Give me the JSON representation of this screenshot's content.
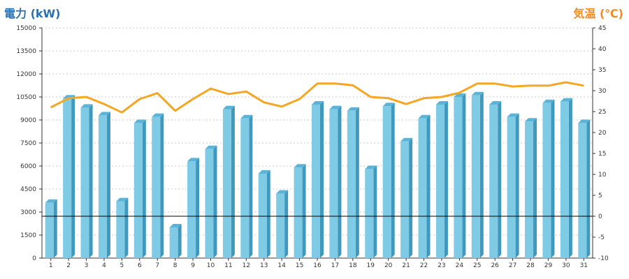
{
  "chart_data": {
    "type": "bar",
    "ylabel": "電力 (kW)",
    "y2label": "気温 (℃)",
    "categories": [
      "1",
      "2",
      "3",
      "4",
      "5",
      "6",
      "7",
      "8",
      "9",
      "10",
      "11",
      "12",
      "13",
      "14",
      "15",
      "16",
      "17",
      "18",
      "19",
      "20",
      "21",
      "22",
      "23",
      "24",
      "25",
      "26",
      "27",
      "28",
      "29",
      "30",
      "31"
    ],
    "ylim": [
      0,
      15000
    ],
    "yticks": [
      0,
      1500,
      3000,
      4500,
      6000,
      7500,
      9000,
      10500,
      12000,
      13500,
      15000
    ],
    "y2lim": [
      -10,
      45
    ],
    "y2ticks": [
      -10,
      -5,
      0,
      5,
      10,
      15,
      20,
      25,
      30,
      35,
      40,
      45
    ],
    "series": [
      {
        "type": "bar",
        "axis": "left",
        "values": [
          3600,
          10400,
          9800,
          9300,
          3700,
          8800,
          9200,
          2000,
          6300,
          7100,
          9700,
          9100,
          5500,
          4200,
          5900,
          10000,
          9700,
          9600,
          5800,
          9900,
          7600,
          9100,
          10000,
          10500,
          10600,
          10000,
          9200,
          8900,
          10100,
          10200,
          8800
        ],
        "color": "#7fcbe6"
      },
      {
        "type": "line",
        "axis": "right",
        "values": [
          26,
          28.2,
          28.5,
          26.8,
          24.8,
          28,
          29.4,
          25.2,
          28,
          30.5,
          29.2,
          29.8,
          27.2,
          26.2,
          28,
          31.7,
          31.7,
          31.3,
          28.5,
          28.2,
          26.8,
          28.2,
          28.5,
          29.5,
          31.7,
          31.7,
          31,
          31.2,
          31.2,
          32,
          31.2
        ],
        "color": "#f5a623"
      }
    ],
    "reference_line": {
      "axis": "right",
      "value": 0
    },
    "grid": true
  }
}
